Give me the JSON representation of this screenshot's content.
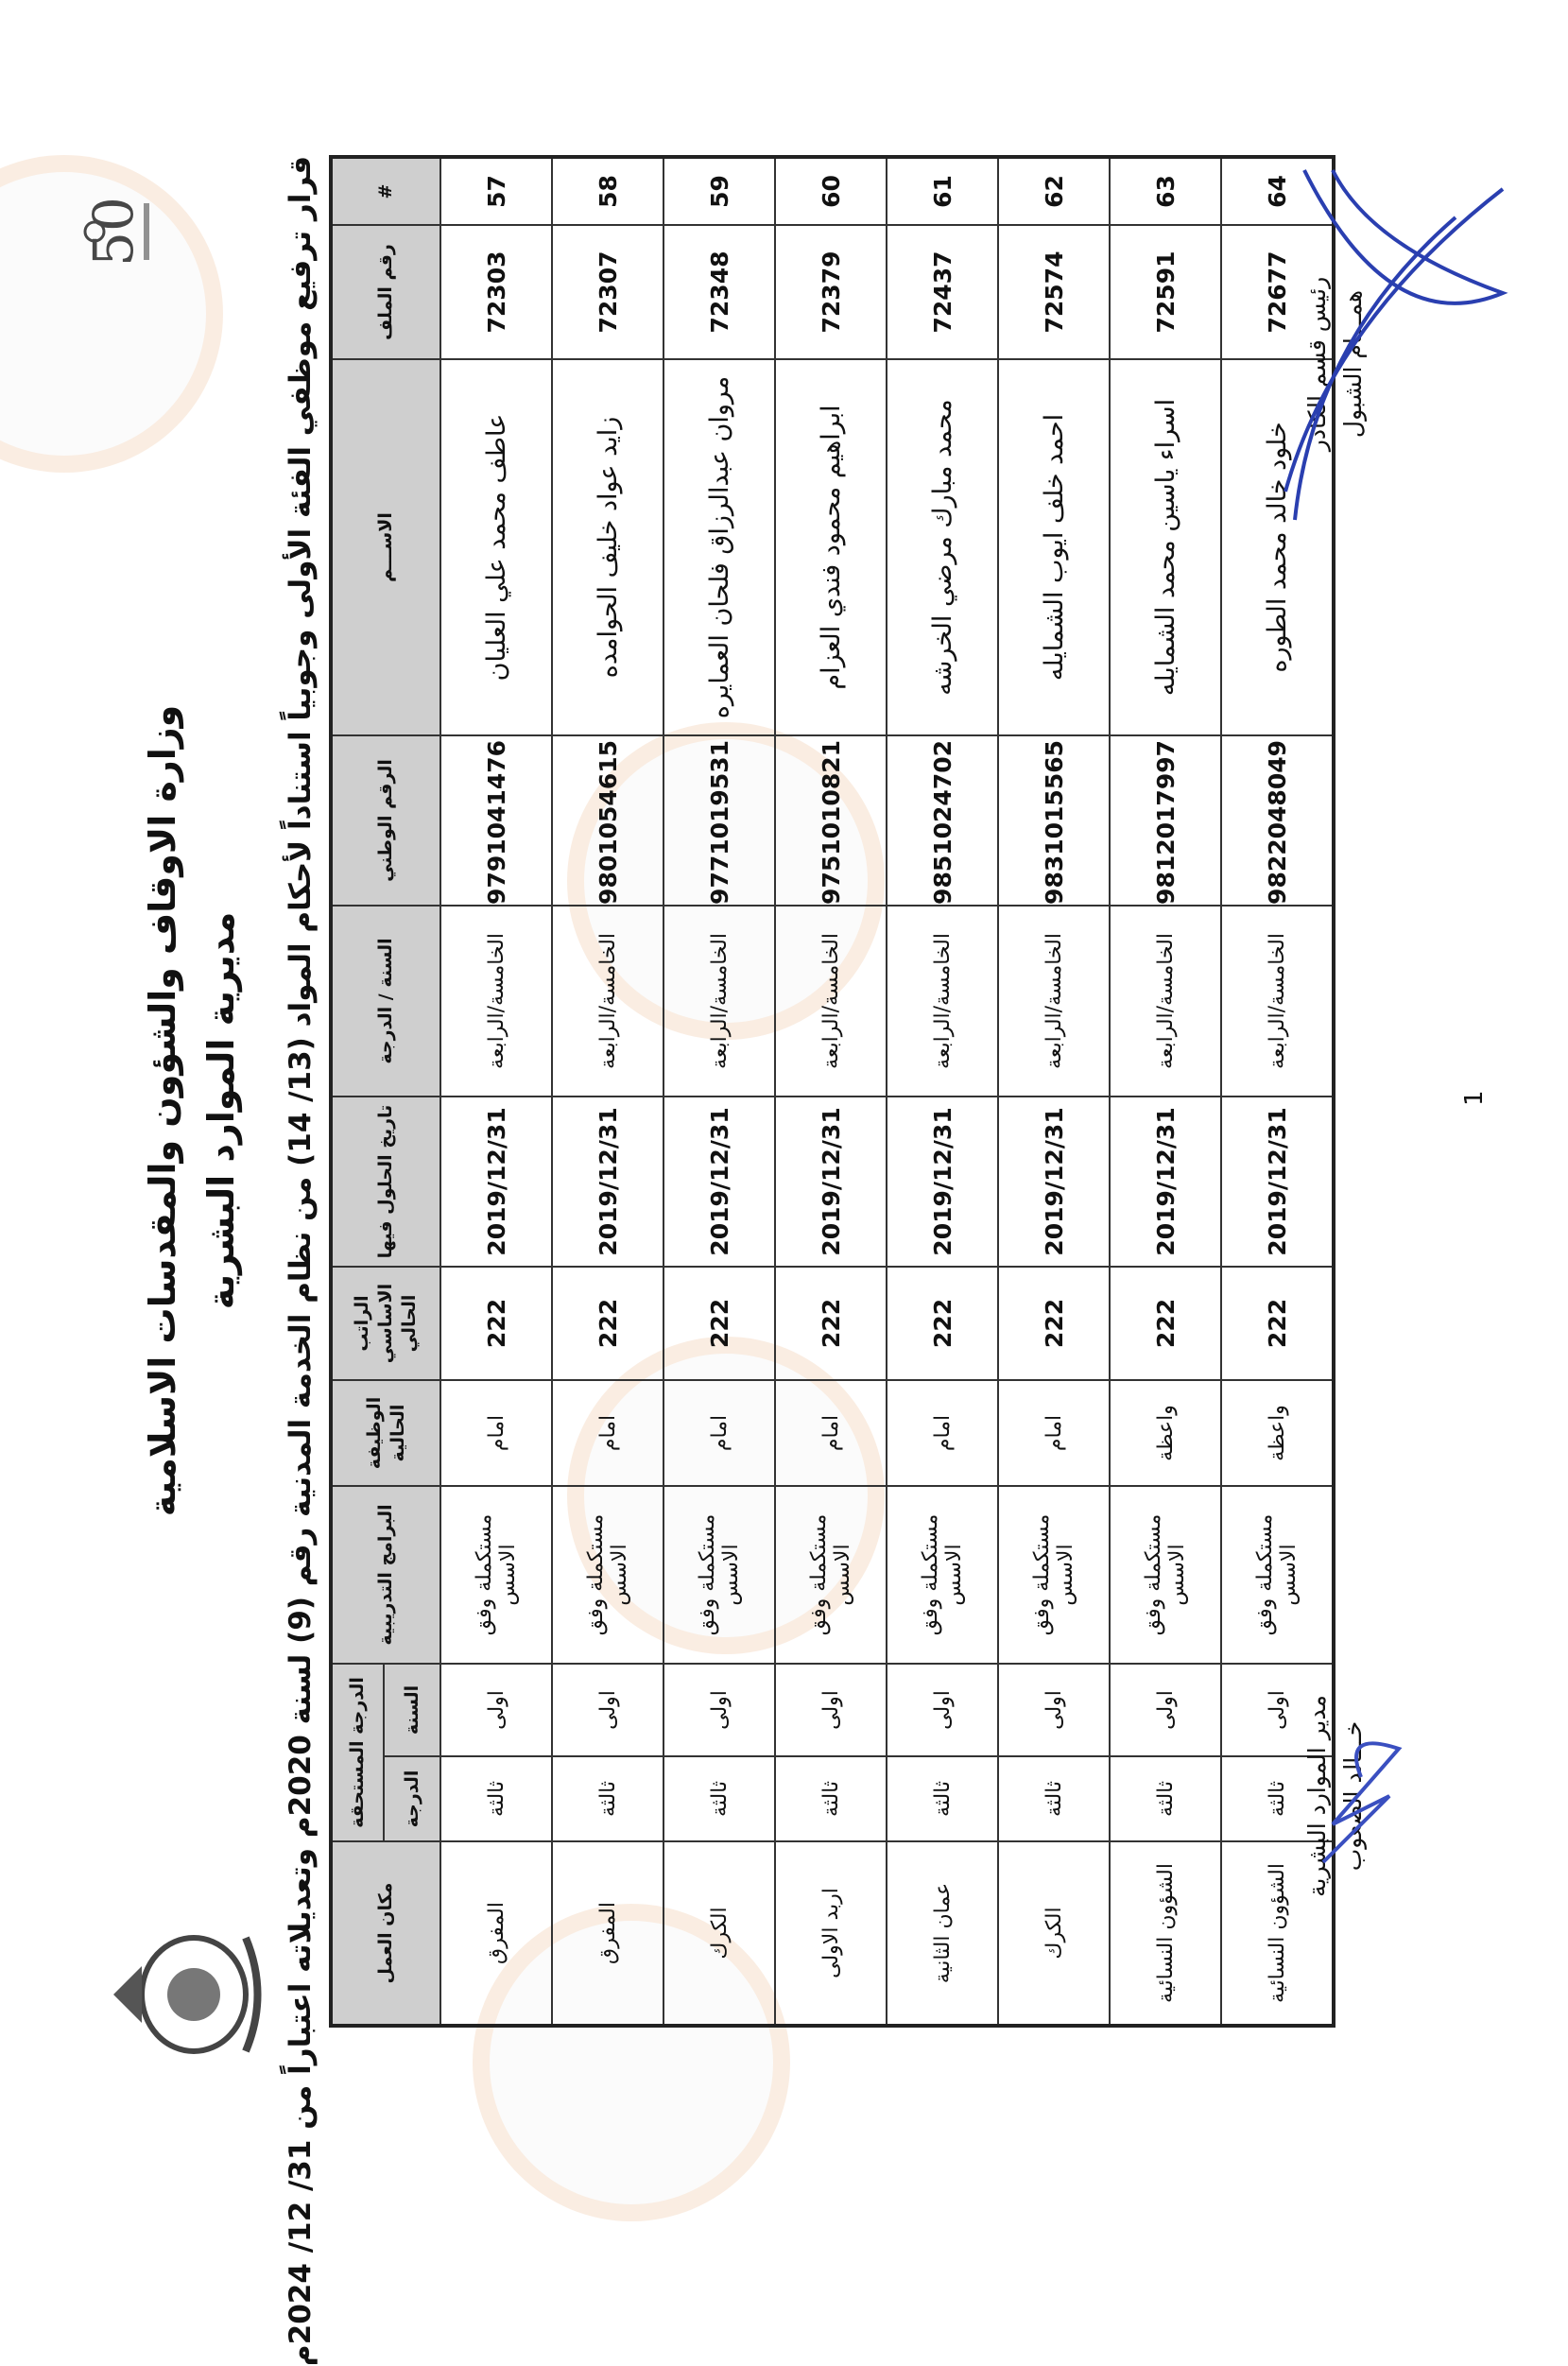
{
  "header": {
    "ministry": "وزارة الاوقاف والشؤون والمقدسات الاسلامية",
    "directorate": "مديرية الموارد البشرية",
    "decision_title": "قرار ترفيع موظفي الفئة الأولى وجوبياً استناداً لأحكام المواد (13/ 14) من نظام الخدمة المدنية رقم (9) لسنة 2020م وتعديلاته اعتباراً من 31/ 12/ 2024م"
  },
  "table": {
    "headers": {
      "index": "#",
      "file_no": "رقم الملف",
      "name": "الاســـم",
      "national_id": "الرقم الوطني",
      "grade": "السنة / الدرجة",
      "date": "تاريخ الحلول فيها",
      "salary": "الراتب الاساسي الحالي",
      "job": "الوظيفة الحالية",
      "programs": "البرامج التدريبية",
      "entitled": "الدرجة المستحقة",
      "entitled_degree": "الدرجة",
      "entitled_year": "السنة",
      "workplace": "مكان العمل"
    },
    "rows": [
      {
        "index": "57",
        "file_no": "72303",
        "name": "عاطف محمد علي العليان",
        "national_id": "9791041476",
        "grade": "الخامسة/الرابعة",
        "date": "2019/12/31",
        "salary": "222",
        "job": "امام",
        "programs": "مستكملة وفق الاسس",
        "year": "اولى",
        "degree": "ثالثة",
        "workplace": "المفرق"
      },
      {
        "index": "58",
        "file_no": "72307",
        "name": "زايد عواد خليف الحوامده",
        "national_id": "9801054615",
        "grade": "الخامسة/الرابعة",
        "date": "2019/12/31",
        "salary": "222",
        "job": "امام",
        "programs": "مستكملة وفق الاسس",
        "year": "اولى",
        "degree": "ثالثة",
        "workplace": "المفرق"
      },
      {
        "index": "59",
        "file_no": "72348",
        "name": "مروان عبدالرزاق فلحان العمايره",
        "national_id": "9771019531",
        "grade": "الخامسة/الرابعة",
        "date": "2019/12/31",
        "salary": "222",
        "job": "امام",
        "programs": "مستكملة وفق الاسس",
        "year": "اولى",
        "degree": "ثالثة",
        "workplace": "الكرك"
      },
      {
        "index": "60",
        "file_no": "72379",
        "name": "ابراهيم محمود فندي العزام",
        "national_id": "9751010821",
        "grade": "الخامسة/الرابعة",
        "date": "2019/12/31",
        "salary": "222",
        "job": "امام",
        "programs": "مستكملة وفق الاسس",
        "year": "اولى",
        "degree": "ثالثة",
        "workplace": "اربد الاولى"
      },
      {
        "index": "61",
        "file_no": "72437",
        "name": "محمد مبارك مرضي الخرشه",
        "national_id": "9851024702",
        "grade": "الخامسة/الرابعة",
        "date": "2019/12/31",
        "salary": "222",
        "job": "امام",
        "programs": "مستكملة وفق الاسس",
        "year": "اولى",
        "degree": "ثالثة",
        "workplace": "عمان الثانية"
      },
      {
        "index": "62",
        "file_no": "72574",
        "name": "احمد خلف ايوب الشمايله",
        "national_id": "9831015565",
        "grade": "الخامسة/الرابعة",
        "date": "2019/12/31",
        "salary": "222",
        "job": "امام",
        "programs": "مستكملة وفق الاسس",
        "year": "اولى",
        "degree": "ثالثة",
        "workplace": "الكرك"
      },
      {
        "index": "63",
        "file_no": "72591",
        "name": "اسراء ياسين محمد الشمايله",
        "national_id": "9812017997",
        "grade": "الخامسة/الرابعة",
        "date": "2019/12/31",
        "salary": "222",
        "job": "واعظة",
        "programs": "مستكملة وفق الاسس",
        "year": "اولى",
        "degree": "ثالثة",
        "workplace": "الشؤون النسائية"
      },
      {
        "index": "64",
        "file_no": "72677",
        "name": "خلود خالد محمد الطوره",
        "national_id": "9822048049",
        "grade": "الخامسة/الرابعة",
        "date": "2019/12/31",
        "salary": "222",
        "job": "واعظة",
        "programs": "مستكملة وفق الاسس",
        "year": "اولى",
        "degree": "ثالثة",
        "workplace": "الشؤون النسائية"
      }
    ]
  },
  "signatures": {
    "right_title": "رئيس قسم الكادر",
    "right_name": "همـــام الشبول",
    "left_title": "مدير الموارد البشرية",
    "left_name": "خـــالد الصعوب"
  },
  "page_number": "1",
  "colors": {
    "header_bg": "#cfcfcf",
    "signature_ink": "#2a3fb0",
    "watermark": "#f4aa6e"
  }
}
